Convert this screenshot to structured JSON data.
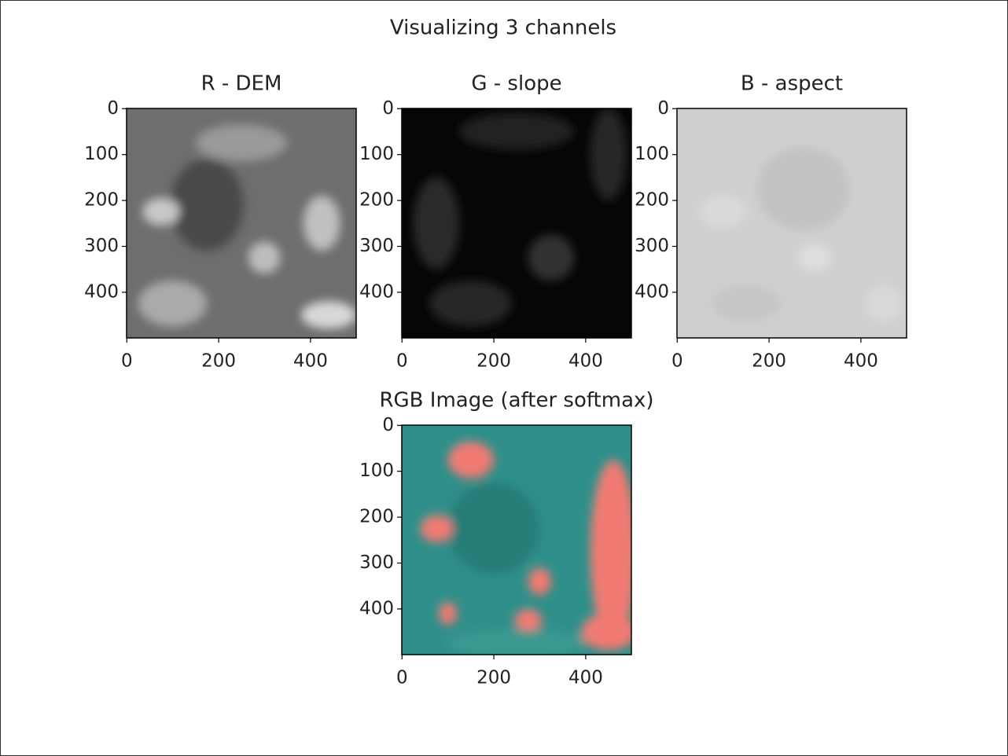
{
  "title": "Visualizing 3 channels",
  "chart_data": [
    {
      "type": "image",
      "title": "R - DEM",
      "xlim": [
        -0.5,
        499.5
      ],
      "ylim": [
        499.5,
        -0.5
      ],
      "xticks": [
        0,
        200,
        400
      ],
      "yticks": [
        0,
        100,
        200,
        300,
        400
      ],
      "colormap": "gray"
    },
    {
      "type": "image",
      "title": "G - slope",
      "xlim": [
        -0.5,
        499.5
      ],
      "ylim": [
        499.5,
        -0.5
      ],
      "xticks": [
        0,
        200,
        400
      ],
      "yticks": [
        0,
        100,
        200,
        300,
        400
      ],
      "colormap": "gray"
    },
    {
      "type": "image",
      "title": "B - aspect",
      "xlim": [
        -0.5,
        499.5
      ],
      "ylim": [
        499.5,
        -0.5
      ],
      "xticks": [
        0,
        200,
        400
      ],
      "yticks": [
        0,
        100,
        200,
        300,
        400
      ],
      "colormap": "gray"
    },
    {
      "type": "image",
      "title": "RGB Image (after softmax)",
      "xlim": [
        -0.5,
        499.5
      ],
      "ylim": [
        499.5,
        -0.5
      ],
      "xticks": [
        0,
        200,
        400
      ],
      "yticks": [
        0,
        100,
        200,
        300,
        400
      ],
      "colormap": "rgb"
    }
  ]
}
